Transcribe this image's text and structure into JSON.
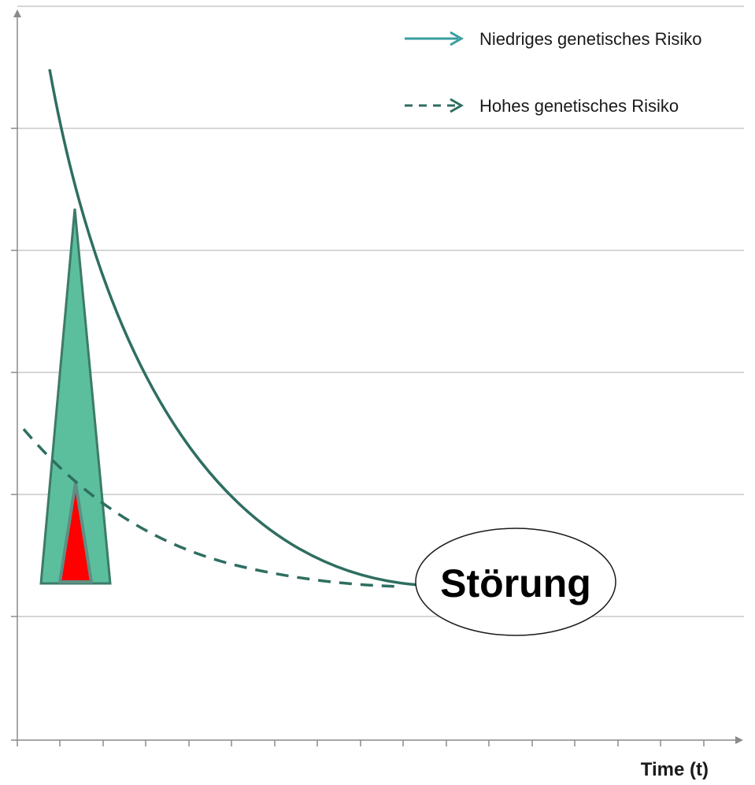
{
  "legend": {
    "low_risk": "Niedriges genetisches Risiko",
    "high_risk": "Hohes genetisches Risiko"
  },
  "outcome_label": "Störung",
  "x_axis_label": "Time (t)",
  "colors": {
    "curve": "#2e6e60",
    "legend_arrow_solid": "#3a9ea0",
    "legend_arrow_dashed": "#2e6e60",
    "triangle_fill": "#5bbf9d",
    "triangle_stroke": "#3d7a6a",
    "inner_triangle": "#ff0000",
    "grid": "#c8c8c8",
    "axis": "#8a8a8a"
  }
}
